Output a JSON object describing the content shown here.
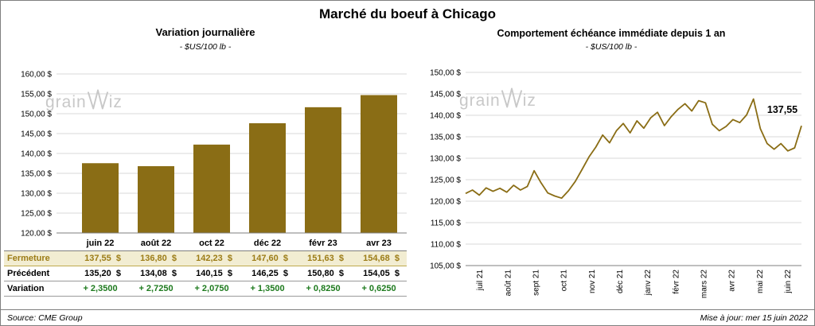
{
  "title": "Marché du boeuf à Chicago",
  "watermark": {
    "left": "grain",
    "right": "iz"
  },
  "bar_panel": {
    "title": "Variation journalière",
    "subtitle": "- $US/100 lb -"
  },
  "line_panel": {
    "title": "Comportement échéance immédiate depuis 1 an",
    "subtitle": "- $US/100 lb -"
  },
  "footer": {
    "source": "Source: CME Group",
    "updated": "Mise à jour: mer 15 juin 2022"
  },
  "colors": {
    "gold": "#8a6d15",
    "green": "#1d7a1d",
    "fermeture_bg": "#f2edd2",
    "fermeture_text": "#9c7c16",
    "gridline": "#d9d9d9",
    "axis": "#7f7f7f",
    "watermark": "#c8c8c8"
  },
  "chart_data": [
    {
      "type": "bar",
      "title": "Variation journalière",
      "subtitle": "- $US/100 lb -",
      "categories": [
        "juin 22",
        "août 22",
        "oct 22",
        "déc 22",
        "févr 23",
        "avr 23"
      ],
      "values": [
        137.55,
        136.8,
        142.23,
        147.6,
        151.63,
        154.68
      ],
      "ylim": [
        120,
        160
      ],
      "ytick_step": 5,
      "grid": true,
      "table": {
        "rows": [
          {
            "label": "Fermeture",
            "values": [
              "137,55  $",
              "136,80  $",
              "142,23  $",
              "147,60  $",
              "151,63  $",
              "154,68  $"
            ]
          },
          {
            "label": "Précédent",
            "values": [
              "135,20  $",
              "134,08  $",
              "140,15  $",
              "146,25  $",
              "150,80  $",
              "154,05  $"
            ]
          },
          {
            "label": "Variation",
            "values": [
              "+ 2,3500",
              "+ 2,7250",
              "+ 2,0750",
              "+ 1,3500",
              "+ 0,8250",
              "+ 0,6250"
            ]
          }
        ]
      }
    },
    {
      "type": "line",
      "title": "Comportement échéance immédiate depuis 1 an",
      "x_labels": [
        "juil 21",
        "août 21",
        "sept 21",
        "oct 21",
        "nov 21",
        "déc 21",
        "janv 22",
        "févr 22",
        "mars 22",
        "avr 22",
        "mai 22",
        "juin 22"
      ],
      "ylim": [
        105,
        150
      ],
      "ytick_step": 5,
      "grid": true,
      "end_label": "137,55",
      "values": [
        121.8,
        122.6,
        121.4,
        123.1,
        122.3,
        123.0,
        122.1,
        123.7,
        122.6,
        123.4,
        127.1,
        124.3,
        121.9,
        121.2,
        120.7,
        122.4,
        124.6,
        127.4,
        130.3,
        132.6,
        135.4,
        133.6,
        136.4,
        138.1,
        135.9,
        138.7,
        137.0,
        139.4,
        140.7,
        137.6,
        139.7,
        141.4,
        142.7,
        141.0,
        143.4,
        142.9,
        137.9,
        136.4,
        137.4,
        139.0,
        138.3,
        140.1,
        143.8,
        136.9,
        133.4,
        132.1,
        133.4,
        131.7,
        132.4,
        137.55
      ]
    }
  ]
}
